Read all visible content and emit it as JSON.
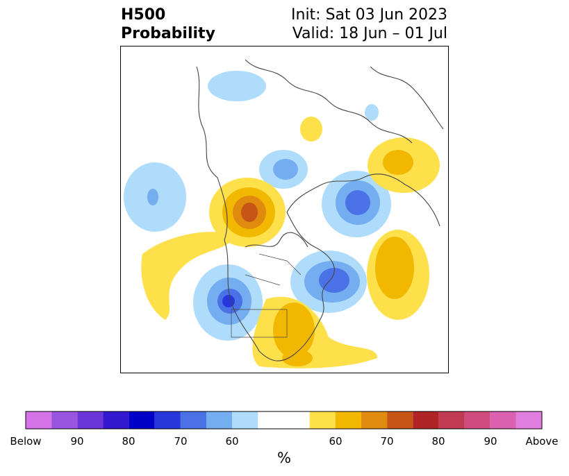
{
  "title": {
    "left_line1": "H500",
    "left_line2": "Probability",
    "right_line1": "Init: Sat 03 Jun 2023",
    "right_line2": "Valid: 18 Jun – 01 Jul"
  },
  "colorbar": {
    "unit": "%",
    "tick_labels": [
      "Below",
      "90",
      "80",
      "70",
      "60",
      "60",
      "70",
      "80",
      "90",
      "Above"
    ],
    "colors": [
      "#d573e8",
      "#9a55e0",
      "#6a35d8",
      "#3418d0",
      "#0000c8",
      "#2837dc",
      "#4a72e6",
      "#74aef0",
      "#aedcfa",
      "#ffffff",
      "#fde04a",
      "#f2b800",
      "#e08a10",
      "#c85518",
      "#b02428",
      "#c03a52",
      "#cf4c7e",
      "#dc60b0",
      "#e27de0"
    ]
  },
  "map": {
    "below_color": "#aedcfa",
    "above_color": "#fde04a",
    "coast_color": "#444444"
  }
}
